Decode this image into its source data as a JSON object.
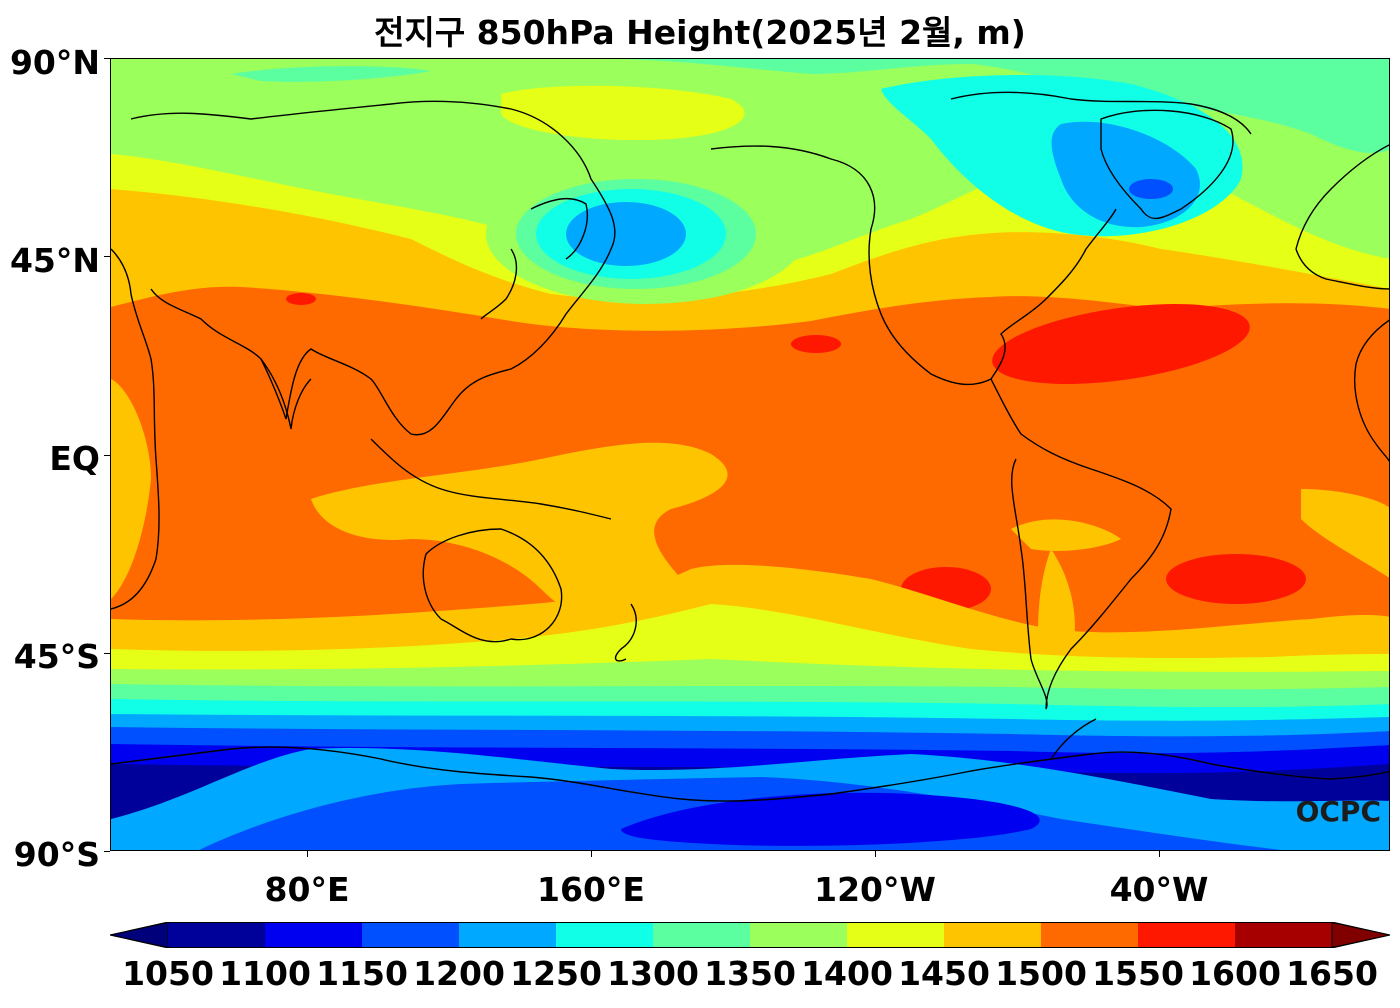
{
  "title": "전지구 850hPa Height(2025년 2월, m)",
  "y_axis_labels": [
    "90°N",
    "45°N",
    "EQ",
    "45°S",
    "90°S"
  ],
  "x_axis_labels": [
    "80°E",
    "160°E",
    "120°W",
    "40°W"
  ],
  "watermark": "OCPC",
  "colorbar": {
    "ticks": [
      "1050",
      "1100",
      "1150",
      "1200",
      "1250",
      "1300",
      "1350",
      "1400",
      "1450",
      "1500",
      "1550",
      "1600",
      "1650"
    ],
    "colors": [
      "#00009b",
      "#0000f0",
      "#0050ff",
      "#00a8ff",
      "#10ffe6",
      "#5cffa0",
      "#9bff5c",
      "#e6ff16",
      "#ffc400",
      "#ff6a00",
      "#ff1800",
      "#a60000"
    ],
    "under_color": "#00007a",
    "over_color": "#800000"
  },
  "map_colors": {
    "h1150": "#0050ff",
    "h1200": "#00a8ff",
    "h1250": "#10ffe6",
    "h1300": "#5cffa0",
    "h1350": "#9bff5c",
    "h1400": "#e6ff16",
    "h1450": "#ffc400",
    "h1500": "#ff6a00",
    "h1550": "#ff1800",
    "h1100": "#0000f0"
  }
}
